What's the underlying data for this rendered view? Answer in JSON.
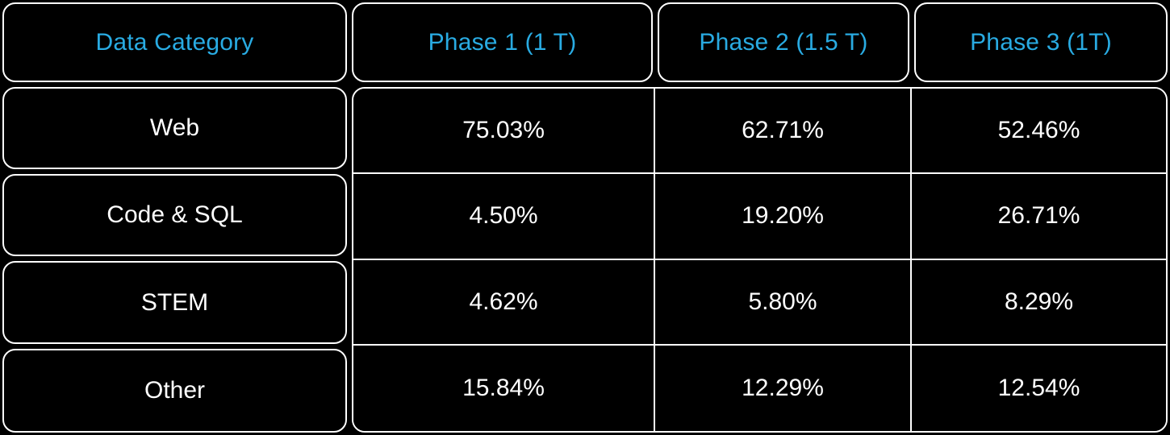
{
  "table": {
    "columns": [
      "Data Category",
      "Phase 1 (1 T)",
      "Phase 2 (1.5 T)",
      "Phase 3 (1T)"
    ],
    "rows": [
      {
        "label": "Web",
        "values": [
          "75.03%",
          "62.71%",
          "52.46%"
        ]
      },
      {
        "label": "Code & SQL",
        "values": [
          "4.50%",
          "19.20%",
          "26.71%"
        ]
      },
      {
        "label": "STEM",
        "values": [
          "4.62%",
          "5.80%",
          "8.29%"
        ]
      },
      {
        "label": "Other",
        "values": [
          "15.84%",
          "12.29%",
          "12.54%"
        ]
      }
    ],
    "colors": {
      "background": "#000000",
      "border": "#ffffff",
      "header_text": "#29ABE2",
      "body_text": "#ffffff"
    }
  },
  "chart_data": {
    "type": "table",
    "title": "",
    "columns": [
      "Data Category",
      "Phase 1 (1 T)",
      "Phase 2 (1.5 T)",
      "Phase 3 (1T)"
    ],
    "categories": [
      "Web",
      "Code & SQL",
      "STEM",
      "Other"
    ],
    "series": [
      {
        "name": "Phase 1 (1 T)",
        "values": [
          75.03,
          4.5,
          4.62,
          15.84
        ]
      },
      {
        "name": "Phase 2 (1.5 T)",
        "values": [
          62.71,
          19.2,
          5.8,
          12.29
        ]
      },
      {
        "name": "Phase 3 (1T)",
        "values": [
          52.46,
          26.71,
          8.29,
          12.54
        ]
      }
    ],
    "unit": "%",
    "layout": {
      "grid": "bordered cells",
      "header_row_color": "#29ABE2",
      "background": "#000000"
    }
  }
}
